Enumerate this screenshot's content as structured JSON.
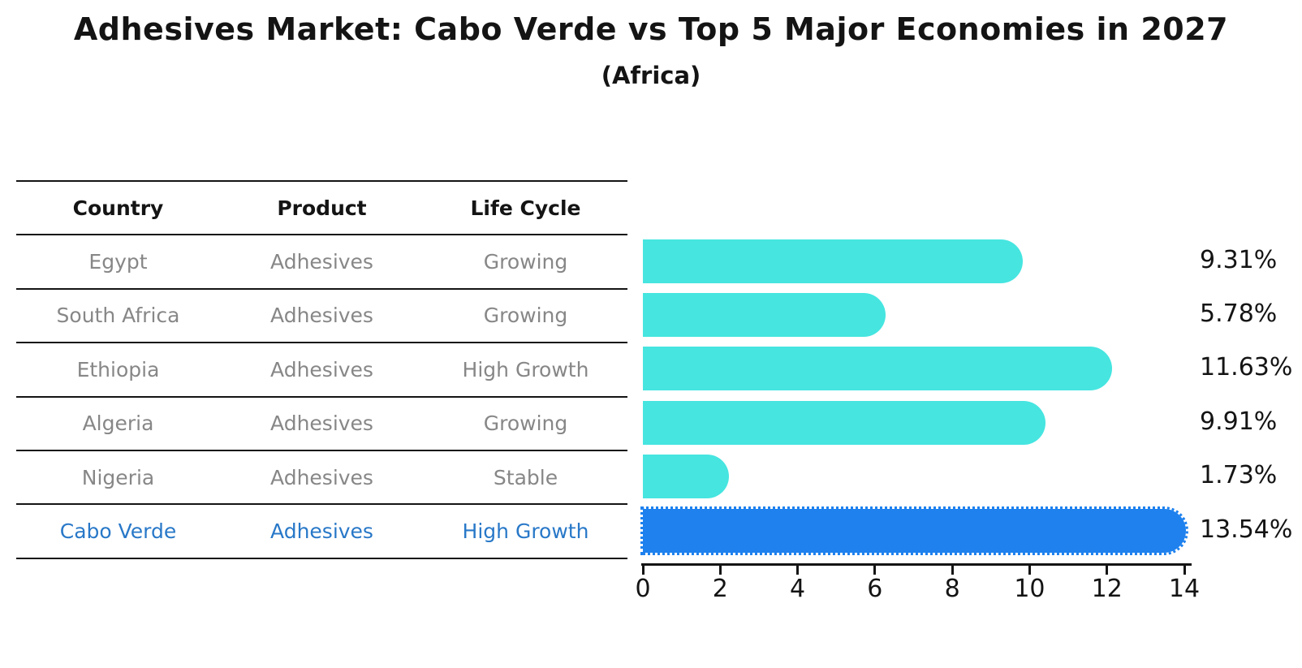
{
  "title": "Adhesives Market: Cabo Verde vs Top 5 Major Economies in 2027",
  "subtitle": "(Africa)",
  "colors": {
    "bar": "#46e5e0",
    "highlight_bar": "#1e81ee",
    "table_text": "#878787",
    "highlight_text": "#2878c8",
    "axis_text": "#141414"
  },
  "table": {
    "headers": [
      "Country",
      "Product",
      "Life Cycle"
    ],
    "rows": [
      {
        "country": "Egypt",
        "product": "Adhesives",
        "life_cycle": "Growing",
        "highlight": false
      },
      {
        "country": "South Africa",
        "product": "Adhesives",
        "life_cycle": "Growing",
        "highlight": false
      },
      {
        "country": "Ethiopia",
        "product": "Adhesives",
        "life_cycle": "High Growth",
        "highlight": false
      },
      {
        "country": "Algeria",
        "product": "Adhesives",
        "life_cycle": "Growing",
        "highlight": false
      },
      {
        "country": "Nigeria",
        "product": "Adhesives",
        "life_cycle": "Stable",
        "highlight": false
      },
      {
        "country": "Cabo Verde",
        "product": "Adhesives",
        "life_cycle": "High Growth",
        "highlight": true
      }
    ]
  },
  "chart_data": {
    "type": "bar",
    "orientation": "horizontal",
    "title": "Adhesives Market: Cabo Verde vs Top 5 Major Economies in 2027 (Africa)",
    "categories": [
      "Egypt",
      "South Africa",
      "Ethiopia",
      "Algeria",
      "Nigeria",
      "Cabo Verde"
    ],
    "values": [
      9.31,
      5.78,
      11.63,
      9.91,
      1.73,
      13.54
    ],
    "value_labels": [
      "9.31%",
      "5.78%",
      "11.63%",
      "9.91%",
      "1.73%",
      "13.54%"
    ],
    "highlight_index": 5,
    "xlabel": "",
    "ylabel": "",
    "xlim": [
      0,
      14
    ],
    "xticks": [
      0,
      2,
      4,
      6,
      8,
      10,
      12,
      14
    ],
    "grid": false,
    "legend": false
  }
}
